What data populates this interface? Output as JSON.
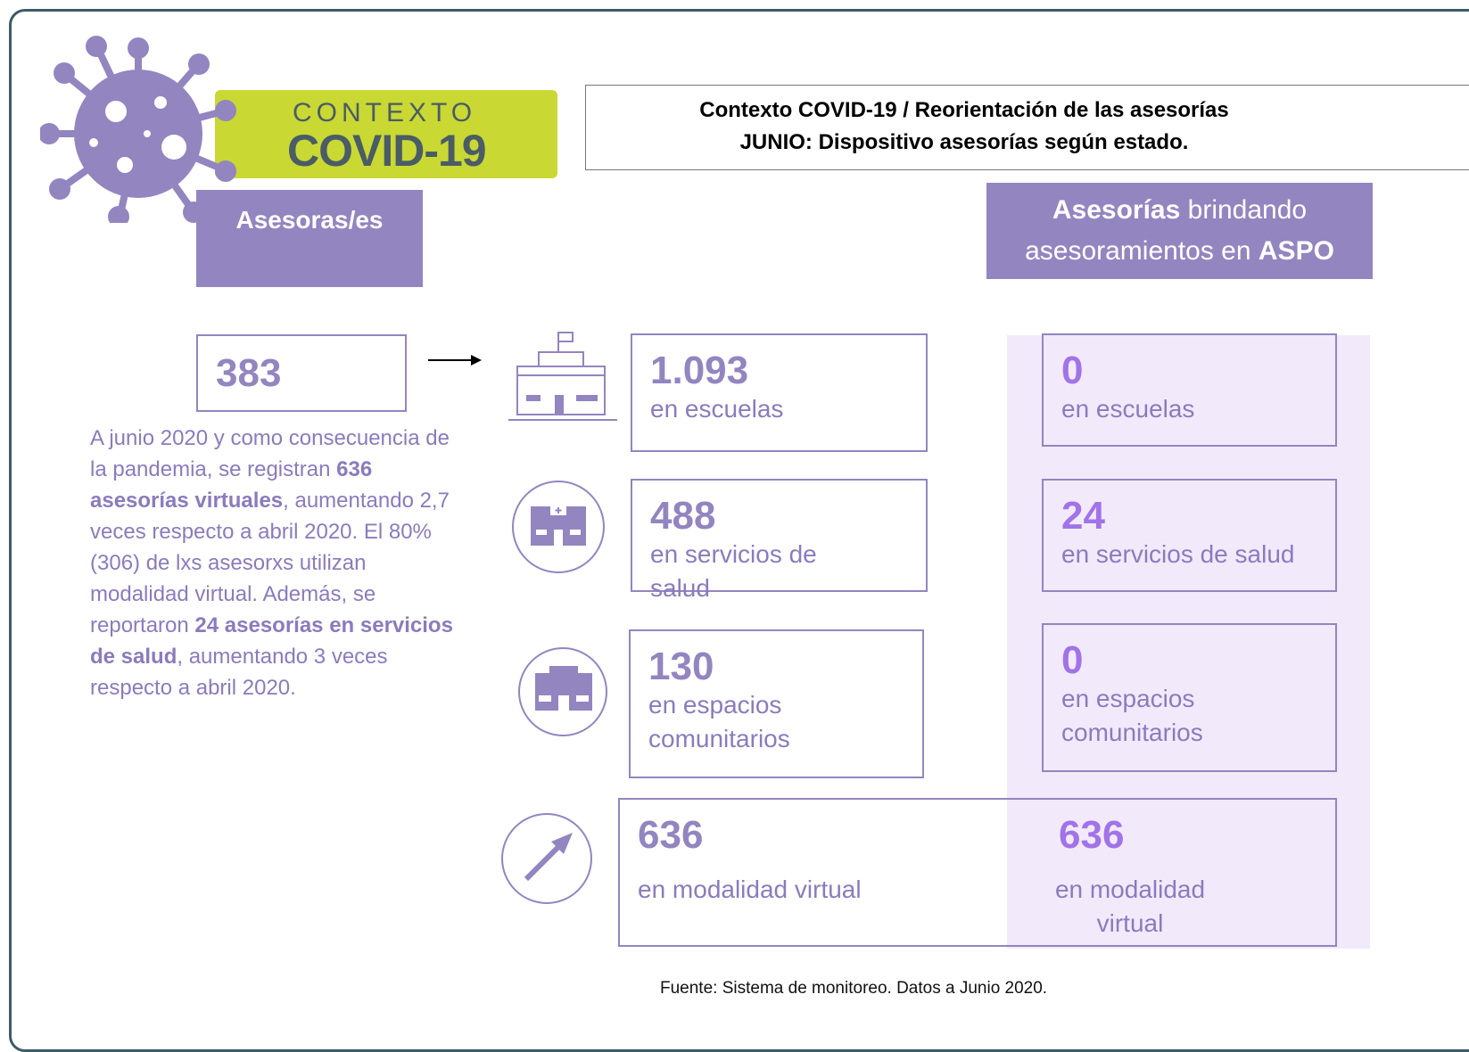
{
  "logo": {
    "line1": "CONTEXTO",
    "line2": "COVID-19"
  },
  "header": {
    "line1": "Contexto COVID-19 / Reorientación de las asesorías",
    "line2": "JUNIO: Dispositivo asesorías según estado."
  },
  "left_header": "Asesoras/es",
  "right_header": [
    {
      "text": "Asesorías",
      "bold": true
    },
    {
      "text": " brindando asesoramientos en ",
      "bold": false
    },
    {
      "text": "ASPO",
      "bold": true
    }
  ],
  "total": "383",
  "summary": [
    {
      "text": "A junio 2020 y como consecuencia de la pandemia, se registran ",
      "bold": false
    },
    {
      "text": "636 asesorías virtuales",
      "bold": true
    },
    {
      "text": ", aumentando 2,7 veces respecto a abril 2020. El 80% (306) de lxs asesorxs utilizan modalidad virtual. Además, se reportaron ",
      "bold": false
    },
    {
      "text": "24 asesorías en servicios de salud",
      "bold": true
    },
    {
      "text": ", aumentando 3 veces respecto a abril 2020.",
      "bold": false
    }
  ],
  "rows": [
    {
      "value": "1.093",
      "label": "en escuelas",
      "aspo_value": "0",
      "aspo_label": "en escuelas"
    },
    {
      "value": "488",
      "label": "en servicios de salud",
      "aspo_value": "24",
      "aspo_label": "en servicios de salud"
    },
    {
      "value": "130",
      "label": "en espacios comunitarios",
      "aspo_value": "0",
      "aspo_label": "en espacios comunitarios"
    },
    {
      "value": "636",
      "label": "en modalidad virtual",
      "aspo_value": "636",
      "aspo_label": "en modalidad virtual"
    }
  ],
  "source": "Fuente: Sistema de monitoreo. Datos a Junio 2020."
}
